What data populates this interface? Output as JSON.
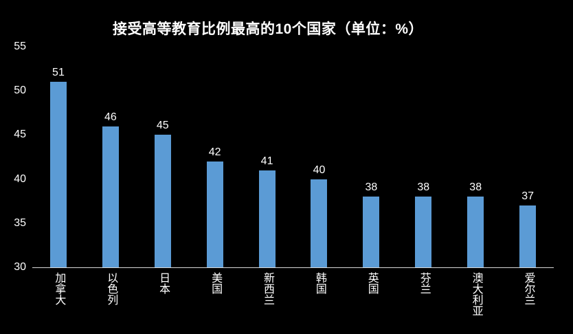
{
  "chart_data": {
    "type": "bar",
    "title": "接受高等教育比例最高的10个国家（单位：%）",
    "categories": [
      "加拿大",
      "以色列",
      "日本",
      "美国",
      "新西兰",
      "韩国",
      "英国",
      "芬兰",
      "澳大利亚",
      "爱尔兰"
    ],
    "values": [
      51,
      46,
      45,
      42,
      41,
      40,
      38,
      38,
      38,
      37
    ],
    "data_labels": [
      "51",
      "46",
      "45",
      "42",
      "41",
      "40",
      "38",
      "38",
      "38",
      "37"
    ],
    "ylim": [
      30,
      55
    ],
    "yticks": [
      55,
      50,
      45,
      40,
      35,
      30
    ],
    "xlabel": "",
    "ylabel": "",
    "grid": false,
    "legend_position": "none",
    "colors": {
      "background": "#000000",
      "bar": "#5B9BD5",
      "text": "#FFFFFF",
      "axis_line": "#D9D9D9"
    }
  }
}
